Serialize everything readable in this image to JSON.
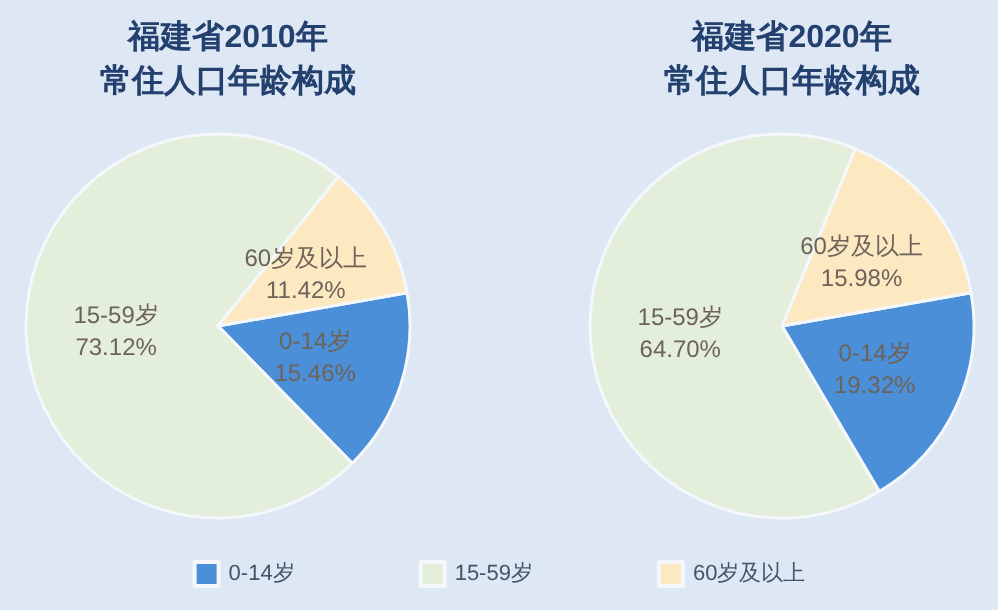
{
  "chart_data": [
    {
      "type": "pie",
      "title": "福建省2010年",
      "subtitle": "常住人口年龄构成",
      "categories": [
        "0-14岁",
        "15-59岁",
        "60岁及以上"
      ],
      "values": [
        15.46,
        73.12,
        11.42
      ],
      "value_labels": [
        "15.46%",
        "73.12%",
        "11.42%"
      ],
      "colors": [
        "#4a8fd8",
        "#e3eedb",
        "#fce9c2"
      ],
      "legend": "bottom"
    },
    {
      "type": "pie",
      "title": "福建省2020年",
      "subtitle": "常住人口年龄构成",
      "categories": [
        "0-14岁",
        "15-59岁",
        "60岁及以上"
      ],
      "values": [
        19.32,
        64.7,
        15.98
      ],
      "value_labels": [
        "19.32%",
        "64.70%",
        "15.98%"
      ],
      "colors": [
        "#4a8fd8",
        "#e3eedb",
        "#fce9c2"
      ]
    }
  ]
}
